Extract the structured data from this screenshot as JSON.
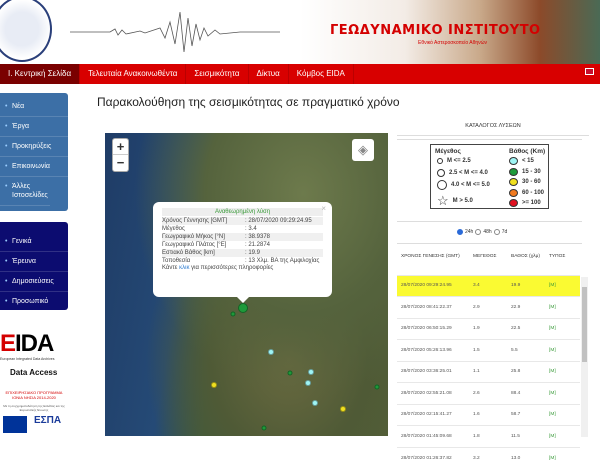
{
  "header": {
    "title": "ΓΕΩΔΥΝΑΜΙΚΟ ΙΝΣΤΙΤΟΥΤΟ",
    "subtitle": "Εθνικό Αστεροσκοπείο Αθηνών"
  },
  "nav": {
    "items": [
      {
        "label": "Ι. Κεντρική Σελίδα",
        "active": true
      },
      {
        "label": "Τελευταία Ανακοινωθέντα"
      },
      {
        "label": "Σεισμικότητα"
      },
      {
        "label": "Δίκτυα"
      },
      {
        "label": "Κόμβος EIDA"
      }
    ],
    "language_icon": "uk-flag-icon"
  },
  "sidebar": {
    "group1": [
      "Νέα",
      "Έργα",
      "Προκηρύξεις",
      "Επικοινωνία",
      "Άλλες Ιστοσελίδες"
    ],
    "group2": [
      "Γενικά",
      "Έρευνα",
      "Δημοσιεύσεις",
      "Προσωπικό"
    ]
  },
  "eida": {
    "logo": "EIDA",
    "subtitle": "European Integrated Data Archives",
    "data_access": "Data Access"
  },
  "espa": {
    "program": "ΕΠΙΧΕΙΡΗΣΙΑΚΟ ΠΡΟΓΡΑΜΜΑ ΙΟΝΙΑ ΝΗΣΙΑ 2014-2020",
    "note": "Με τη συγχρηματοδότηση της Ελλάδας και της Ευρωπαϊκής Ένωσης",
    "logo": "ΕΣΠΑ 2014-2020"
  },
  "page_title": "Παρακολούθηση της σεισμικότητας σε πραγματικό χρόνο",
  "map": {
    "zoom_in": "+",
    "zoom_out": "−",
    "layers_icon": "layers-icon",
    "popup": {
      "heading": "Αναθεωρημένη λύση",
      "close": "×",
      "rows": [
        {
          "k": "Χρόνος Γέννησης [GMT]",
          "v": ": 28/07/2020 09:29:24.95"
        },
        {
          "k": "Μέγεθος",
          "v": ": 3.4"
        },
        {
          "k": "Γεωγραφικό Μήκος [°N]",
          "v": ": 38.9378"
        },
        {
          "k": "Γεωγραφικό Πλάτος [°E]",
          "v": ": 21.2874"
        },
        {
          "k": "Εστιακό Βάθος [km]",
          "v": ": 19.9"
        },
        {
          "k": "Τοποθεσία",
          "v": ": 13 Χλμ. ΒΑ της Αμφιλοχίας"
        }
      ],
      "more_prefix": "Κάντε ",
      "more_link": "κλικ",
      "more_suffix": " για περισσότερες πληροφορίες"
    }
  },
  "catalog": {
    "title": "ΚΑΤΑΛΟΓΟΣ ΛΥΣΕΩΝ",
    "legend": {
      "mag_title": "Μέγεθος",
      "depth_title": "Βάθος (Km)",
      "mags": [
        "M <= 2.5",
        "2.5 < M <= 4.0",
        "4.0 < M <= 5.0",
        "M > 5.0"
      ],
      "depths": [
        {
          "label": "< 15",
          "color": "#9ff5f5"
        },
        {
          "label": "15 - 30",
          "color": "#1e9a3a"
        },
        {
          "label": "30 - 60",
          "color": "#f0e020"
        },
        {
          "label": "60 - 100",
          "color": "#f07a20"
        },
        {
          "label": ">= 100",
          "color": "#e01020"
        }
      ]
    },
    "ranges": [
      {
        "label": "24h",
        "selected": true
      },
      {
        "label": "48h"
      },
      {
        "label": "7d"
      }
    ],
    "columns": [
      "ΧΡΟΝΟΣ ΓΕΝΕΣΗΣ (GMT)",
      "ΜΕΓΕΘΟΣ",
      "ΒΑΘΟΣ (χλμ)",
      "ΤΥΠΟΣ"
    ],
    "rows": [
      [
        "28/07/2020 09:29:24.95",
        "3.4",
        "19.9",
        "[M]"
      ],
      [
        "28/07/2020 08:41:22.37",
        "2.9",
        "22.9",
        "[M]"
      ],
      [
        "28/07/2020 06:50:15.29",
        "1.9",
        "22.5",
        "[M]"
      ],
      [
        "28/07/2020 05:26:13.96",
        "1.5",
        "5.5",
        "[M]"
      ],
      [
        "28/07/2020 03:36:25.01",
        "1.1",
        "25.8",
        "[M]"
      ],
      [
        "28/07/2020 02:55:21.08",
        "2.6",
        "88.4",
        "[M]"
      ],
      [
        "28/07/2020 02:15:41.27",
        "1.6",
        "58.7",
        "[M]"
      ],
      [
        "28/07/2020 01:45:09.68",
        "1.8",
        "11.5",
        "[M]"
      ],
      [
        "28/07/2020 01:26:37.82",
        "3.2",
        "13.0",
        "[M]"
      ]
    ]
  }
}
